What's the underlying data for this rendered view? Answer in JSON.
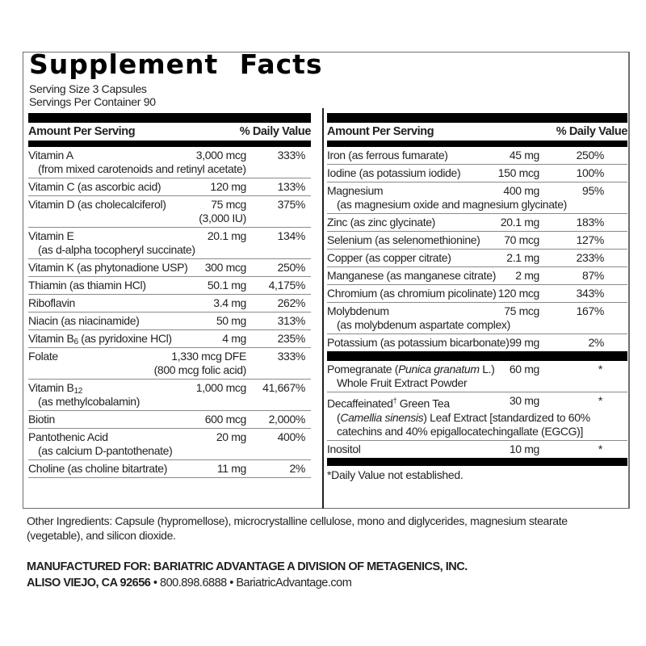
{
  "title": "Supplement Facts",
  "serving_size": "Serving Size 3 Capsules",
  "servings_per_container": "Servings Per Container 90",
  "header": {
    "amount": "Amount Per Serving",
    "dv": "% Daily Value"
  },
  "left_rows": [
    {
      "name": [
        {
          "t": "Vitamin A"
        }
      ],
      "detail": [
        {
          "t": "(from mixed carotenoids and retinyl acetate)"
        }
      ],
      "amount": "3,000 mcg",
      "dv": "333%"
    },
    {
      "name": [
        {
          "t": "Vitamin C (as ascorbic acid)"
        }
      ],
      "amount": "120 mg",
      "dv": "133%"
    },
    {
      "name": [
        {
          "t": "Vitamin D (as cholecalciferol)"
        }
      ],
      "amount": "75 mcg",
      "amount_note": "(3,000 IU)",
      "dv": "375%"
    },
    {
      "name": [
        {
          "t": "Vitamin E"
        }
      ],
      "detail": [
        {
          "t": "(as d-alpha tocopheryl succinate)"
        }
      ],
      "amount": "20.1 mg",
      "dv": "134%"
    },
    {
      "name": [
        {
          "t": "Vitamin K (as phytonadione USP)"
        }
      ],
      "amount": "300 mcg",
      "dv": "250%"
    },
    {
      "name": [
        {
          "t": "Thiamin (as thiamin HCl)"
        }
      ],
      "amount": "50.1 mg",
      "dv": "4,175%"
    },
    {
      "name": [
        {
          "t": "Riboflavin"
        }
      ],
      "amount": "3.4 mg",
      "dv": "262%"
    },
    {
      "name": [
        {
          "t": "Niacin (as niacinamide)"
        }
      ],
      "amount": "50 mg",
      "dv": "313%"
    },
    {
      "name": [
        {
          "t": "Vitamin B"
        },
        {
          "t": "6",
          "sub": true
        },
        {
          "t": " (as pyridoxine HCl)"
        }
      ],
      "amount": "4 mg",
      "dv": "235%"
    },
    {
      "name": [
        {
          "t": "Folate"
        }
      ],
      "amount": "1,330 mcg DFE",
      "amount_note": "(800 mcg folic acid)",
      "dv": "333%"
    },
    {
      "name": [
        {
          "t": "Vitamin B"
        },
        {
          "t": "12",
          "sub": true
        }
      ],
      "detail": [
        {
          "t": "(as methylcobalamin)"
        }
      ],
      "amount": "1,000 mcg",
      "dv": "41,667%"
    },
    {
      "name": [
        {
          "t": "Biotin"
        }
      ],
      "amount": "600 mcg",
      "dv": "2,000%"
    },
    {
      "name": [
        {
          "t": "Pantothenic Acid"
        }
      ],
      "detail": [
        {
          "t": "(as calcium D-pantothenate)"
        }
      ],
      "amount": "20 mg",
      "dv": "400%"
    },
    {
      "name": [
        {
          "t": "Choline (as choline bitartrate)"
        }
      ],
      "amount": "11 mg",
      "dv": "2%"
    }
  ],
  "right_rows": [
    {
      "name": [
        {
          "t": "Iron (as ferrous fumarate)"
        }
      ],
      "amount": "45 mg",
      "dv": "250%"
    },
    {
      "name": [
        {
          "t": "Iodine (as potassium iodide)"
        }
      ],
      "amount": "150 mcg",
      "dv": "100%"
    },
    {
      "name": [
        {
          "t": " Magnesium"
        }
      ],
      "detail": [
        {
          "t": "(as magnesium oxide and magnesium glycinate)"
        }
      ],
      "amount": "400 mg",
      "dv": "95%"
    },
    {
      "name": [
        {
          "t": "Zinc (as zinc glycinate)"
        }
      ],
      "amount": "20.1 mg",
      "dv": "183%"
    },
    {
      "name": [
        {
          "t": "Selenium (as selenomethionine)"
        }
      ],
      "amount": "70 mcg",
      "dv": "127%"
    },
    {
      "name": [
        {
          "t": "Copper (as copper citrate)"
        }
      ],
      "amount": "2.1 mg",
      "dv": "233%"
    },
    {
      "name": [
        {
          "t": "Manganese (as manganese citrate)"
        }
      ],
      "amount": "2 mg",
      "dv": "87%"
    },
    {
      "name": [
        {
          "t": "Chromium (as chromium picolinate)"
        }
      ],
      "amount": "120 mcg",
      "dv": "343%"
    },
    {
      "name": [
        {
          "t": "Molybdenum"
        }
      ],
      "detail": [
        {
          "t": "(as molybdenum aspartate complex)"
        }
      ],
      "amount": "75 mcg",
      "dv": "167%"
    },
    {
      "name": [
        {
          "t": "Potassium (as potassium bicarbonate)"
        }
      ],
      "amount": "99 mg",
      "dv": "2%"
    }
  ],
  "other_rows": [
    {
      "name": [
        {
          "t": "Pomegranate ("
        },
        {
          "t": "Punica granatum",
          "i": true
        },
        {
          "t": " L.)"
        }
      ],
      "detail": [
        {
          "t": "Whole Fruit Extract Powder"
        }
      ],
      "amount": "60 mg",
      "dv": "*"
    },
    {
      "name": [
        {
          "t": "Decaffeinated"
        },
        {
          "t": "†",
          "sup": true
        },
        {
          "t": " Green Tea"
        }
      ],
      "detail": [
        {
          "t": "("
        },
        {
          "t": "Camellia sinensis",
          "i": true
        },
        {
          "t": ") Leaf Extract [standardized to 60%"
        },
        {
          "br": true
        },
        {
          "t": "catechins and 40% epigallocatechingallate (EGCG)]"
        }
      ],
      "amount": "30 mg",
      "dv": "*"
    },
    {
      "name": [
        {
          "t": "Inositol"
        }
      ],
      "amount": "10 mg",
      "dv": "*"
    }
  ],
  "footnote": "*Daily Value not established.",
  "other_ingredients": "Other Ingredients: Capsule (hypromellose), microcrystalline cellulose, mono and diglycerides, magnesium stearate (vegetable), and silicon dioxide.",
  "manufacturer": {
    "line1": "MANUFACTURED FOR: BARIATRIC ADVANTAGE A DIVISION OF METAGENICS, INC.",
    "city": "ALISO VIEJO, CA 92656",
    "separator": " • ",
    "phone": "800.898.6888",
    "website": "BariatricAdvantage.com"
  }
}
